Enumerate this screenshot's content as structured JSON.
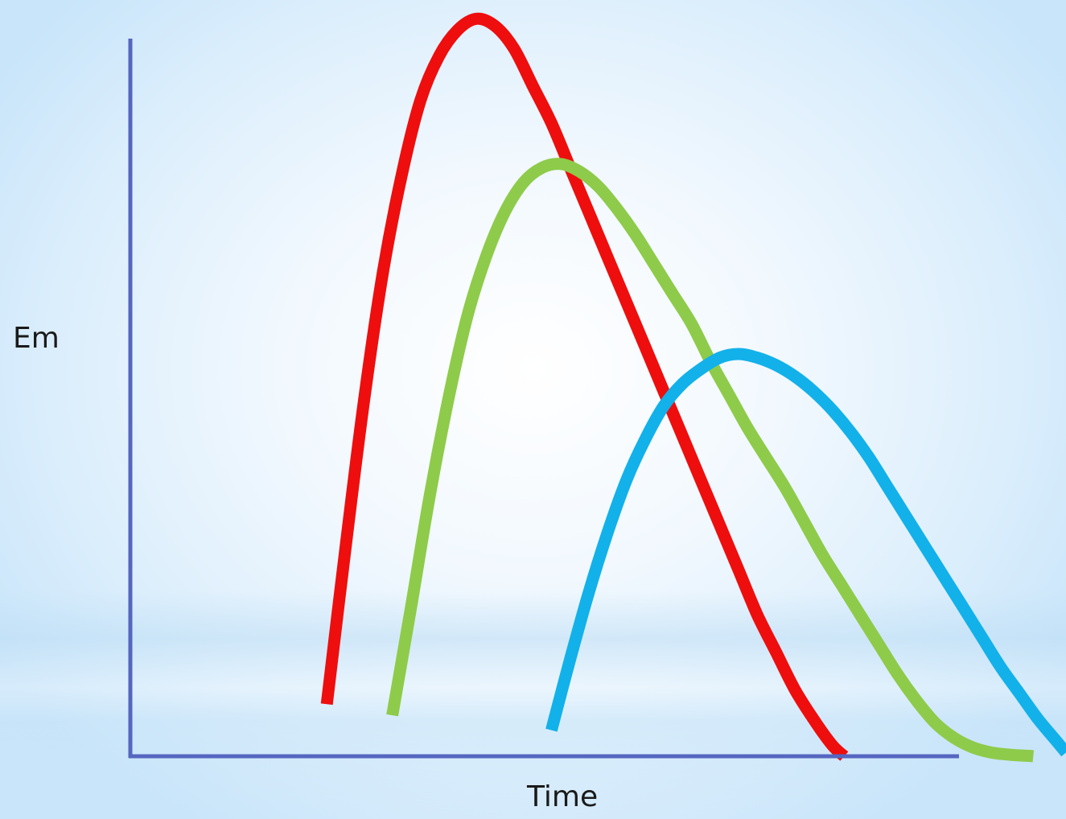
{
  "chart_data": {
    "type": "line",
    "title": "",
    "xlabel": "Time",
    "ylabel": "Em",
    "grid": false,
    "legend": "none",
    "xlim": [
      0,
      100
    ],
    "ylim": [
      0,
      100
    ],
    "axis_color": "#5566c0",
    "series": [
      {
        "color": "#ee0e0e",
        "x": [
          21,
          23,
          25,
          27,
          29,
          31,
          33,
          35,
          37,
          39,
          41,
          43,
          45,
          47,
          49,
          51,
          53,
          55,
          57,
          59,
          61,
          63,
          65,
          67,
          69,
          71,
          73,
          75,
          76.3
        ],
        "y": [
          7,
          28,
          48,
          65,
          78,
          88,
          94,
          97.5,
          99,
          98,
          95,
          90,
          85,
          79,
          73,
          67,
          61,
          55,
          49,
          43,
          37,
          31,
          25,
          19,
          14,
          9,
          5,
          1.5,
          0
        ]
      },
      {
        "color": "#8ecb4a",
        "x": [
          28,
          30,
          32,
          34,
          36,
          38,
          40,
          42,
          44,
          46,
          48,
          50,
          52,
          54,
          56,
          58,
          60,
          62,
          64,
          66,
          68,
          70,
          72,
          74,
          76,
          78,
          80,
          82,
          84,
          86,
          88,
          90,
          92,
          94,
          96,
          96.5
        ],
        "y": [
          5.5,
          20,
          35,
          48,
          59,
          67,
          73,
          77,
          79,
          79.5,
          78.5,
          76.5,
          73.5,
          70,
          66,
          62,
          58,
          53,
          48.5,
          44,
          40,
          36,
          31.5,
          27,
          23,
          19,
          15,
          11,
          7.5,
          4.5,
          2.5,
          1.2,
          0.5,
          0.2,
          0.05,
          0
        ]
      },
      {
        "color": "#12b1ea",
        "x": [
          45,
          47,
          49,
          51,
          53,
          55,
          57,
          59,
          61,
          63,
          65,
          67,
          69,
          71,
          73,
          75,
          77,
          79,
          81,
          83,
          85,
          87,
          89,
          91,
          93,
          95,
          97,
          99,
          100
        ],
        "y": [
          3.5,
          13,
          22,
          30,
          37,
          42.5,
          47,
          50,
          52,
          53.5,
          54,
          53.5,
          52.5,
          51,
          49,
          46.5,
          43.5,
          40,
          36,
          32,
          28,
          24,
          20,
          16,
          12,
          8.5,
          5,
          2,
          0.5
        ]
      }
    ]
  }
}
